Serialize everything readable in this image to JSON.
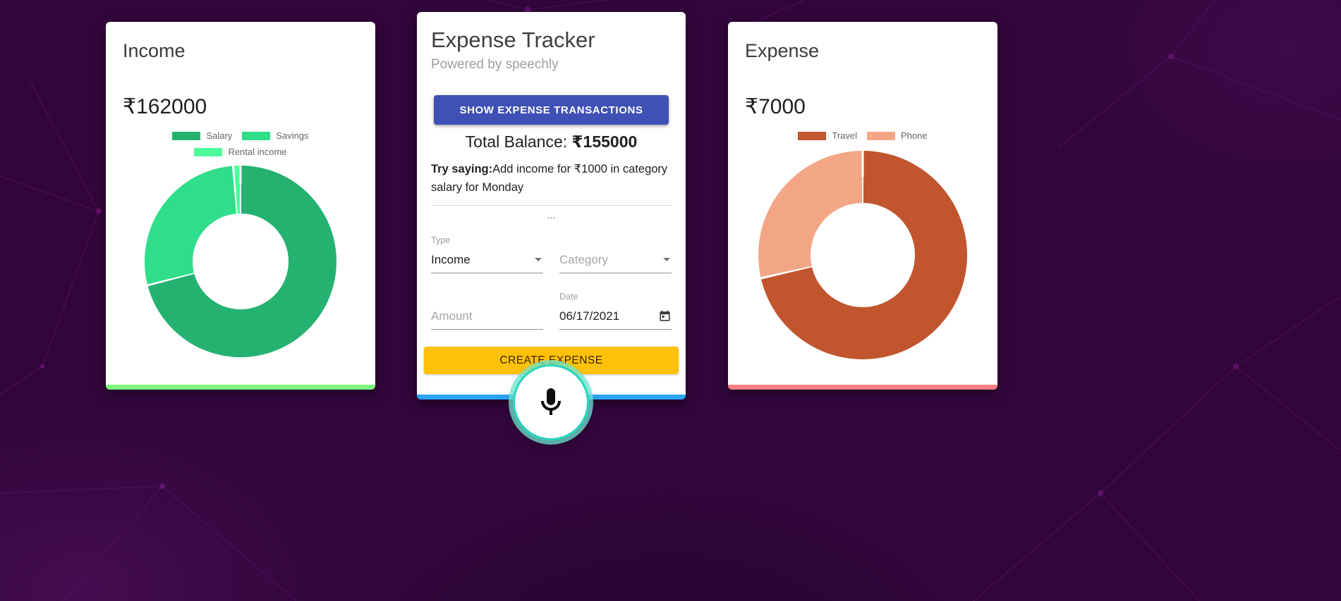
{
  "theme": {
    "page_bg": "#32063c",
    "card_bg": "#ffffff",
    "income_accent": "#7cf67d",
    "tracker_accent": "#2ca4f5",
    "expense_accent": "#f57f84",
    "primary_button_bg": "#3f51b5",
    "primary_button_text": "#ffffff",
    "create_button_bg": "#ffc107",
    "mic_ring_color": "#27d5bf"
  },
  "income_card": {
    "title": "Income",
    "total": "₹162000"
  },
  "expense_card": {
    "title": "Expense",
    "total": "₹7000"
  },
  "tracker_card": {
    "title": "Expense Tracker",
    "subtitle": "Powered by speechly",
    "transactions_button_label": "SHOW EXPENSE TRANSACTIONS",
    "balance_label": "Total Balance:",
    "balance_value": "₹155000",
    "try_saying_label": "Try saying:",
    "try_saying_text": "Add income for ₹1000 in category salary for Monday",
    "list_ellipsis": "...",
    "form": {
      "type_label": "Type",
      "type_value": "Income",
      "category_placeholder": "Category",
      "amount_placeholder": "Amount",
      "amount_value": "",
      "date_label": "Date",
      "date_value": "06/17/2021"
    },
    "create_button_label": "CREATE EXPENSE"
  },
  "icons": {
    "dropdown_arrow": "chevron-down",
    "calendar": "calendar",
    "microphone": "microphone"
  },
  "chart_data": [
    {
      "type": "pie",
      "variant": "doughnut",
      "title": "Income",
      "total": 162000,
      "total_label": "₹162000",
      "categories": [
        "Salary",
        "Savings",
        "Rental income"
      ],
      "values": [
        115000,
        45000,
        2000
      ],
      "colors": [
        "#25b271",
        "#2fdd8a",
        "#4efc99"
      ],
      "legend_position": "top"
    },
    {
      "type": "pie",
      "variant": "doughnut",
      "title": "Expense",
      "total": 7000,
      "total_label": "₹7000",
      "categories": [
        "Travel",
        "Phone"
      ],
      "values": [
        5000,
        2000
      ],
      "colors": [
        "#c1562e",
        "#f3a685"
      ],
      "legend_position": "top"
    }
  ]
}
